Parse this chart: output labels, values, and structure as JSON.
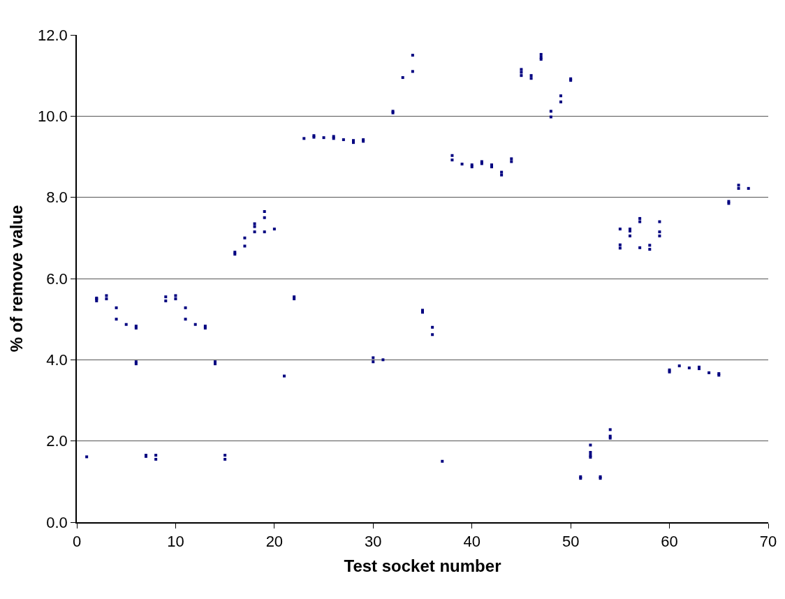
{
  "chart_data": {
    "type": "scatter",
    "xlabel": "Test socket number",
    "ylabel": "% of remove value",
    "x": [
      1,
      2,
      2,
      2,
      3,
      3,
      4,
      4,
      5,
      6,
      6,
      6,
      6,
      7,
      7,
      8,
      8,
      9,
      9,
      10,
      10,
      11,
      11,
      12,
      13,
      13,
      14,
      14,
      15,
      15,
      16,
      16,
      17,
      17,
      18,
      18,
      18,
      19,
      19,
      19,
      20,
      21,
      22,
      22,
      23,
      24,
      24,
      25,
      26,
      26,
      27,
      28,
      28,
      29,
      29,
      30,
      30,
      31,
      32,
      32,
      33,
      34,
      34,
      35,
      35,
      36,
      36,
      37,
      38,
      38,
      39,
      40,
      40,
      41,
      41,
      42,
      42,
      43,
      43,
      44,
      44,
      45,
      45,
      45,
      46,
      46,
      47,
      47,
      47,
      48,
      48,
      49,
      49,
      50,
      50,
      51,
      51,
      52,
      52,
      52,
      52,
      53,
      53,
      54,
      54,
      54,
      55,
      55,
      55,
      56,
      56,
      56,
      57,
      57,
      57,
      58,
      58,
      59,
      59,
      59,
      60,
      60,
      61,
      62,
      63,
      63,
      64,
      65,
      65,
      66,
      66,
      67,
      67,
      68
    ],
    "values": [
      1.61,
      5.5,
      5.45,
      5.52,
      5.58,
      5.5,
      5.28,
      5.0,
      4.87,
      4.83,
      4.78,
      3.95,
      3.9,
      1.65,
      1.62,
      1.65,
      1.55,
      5.55,
      5.45,
      5.58,
      5.5,
      5.28,
      5.0,
      4.87,
      4.83,
      4.78,
      3.95,
      3.9,
      1.65,
      1.55,
      6.65,
      6.6,
      7.0,
      6.8,
      7.35,
      7.28,
      7.15,
      7.65,
      7.5,
      7.15,
      7.22,
      3.6,
      5.55,
      5.5,
      9.45,
      9.52,
      9.48,
      9.47,
      9.5,
      9.45,
      9.42,
      9.4,
      9.35,
      9.42,
      9.38,
      4.05,
      3.95,
      4.0,
      10.12,
      10.08,
      10.95,
      11.5,
      11.1,
      5.22,
      5.17,
      4.8,
      4.62,
      1.5,
      9.03,
      8.92,
      8.82,
      8.8,
      8.75,
      8.88,
      8.83,
      8.8,
      8.75,
      8.62,
      8.55,
      8.95,
      8.88,
      11.15,
      11.08,
      11.0,
      11.0,
      10.93,
      11.52,
      11.45,
      11.4,
      10.12,
      9.98,
      10.5,
      10.35,
      10.92,
      10.88,
      1.12,
      1.08,
      1.9,
      1.72,
      1.65,
      1.6,
      1.12,
      1.08,
      2.28,
      2.12,
      2.07,
      6.83,
      6.75,
      7.22,
      7.22,
      7.17,
      7.05,
      7.48,
      7.4,
      6.76,
      6.82,
      6.72,
      7.4,
      7.15,
      7.05,
      3.75,
      3.7,
      3.85,
      3.8,
      3.82,
      3.78,
      3.68,
      3.66,
      3.62,
      7.9,
      7.85,
      8.3,
      8.22,
      8.22
    ],
    "color": "#000080",
    "marker": "square",
    "grid": "y",
    "legend": false,
    "xlim": [
      0,
      70
    ],
    "xticks": [
      0,
      10,
      20,
      30,
      40,
      50,
      60,
      70
    ],
    "ylim": [
      0,
      12
    ],
    "yticks": [
      {
        "value": 0,
        "label": "0.0"
      },
      {
        "value": 2,
        "label": "2.0"
      },
      {
        "value": 4,
        "label": "4.0"
      },
      {
        "value": 6,
        "label": "6.0"
      },
      {
        "value": 8,
        "label": "8.0"
      },
      {
        "value": 10,
        "label": "10.0"
      },
      {
        "value": 12,
        "label": "12.0"
      }
    ]
  }
}
